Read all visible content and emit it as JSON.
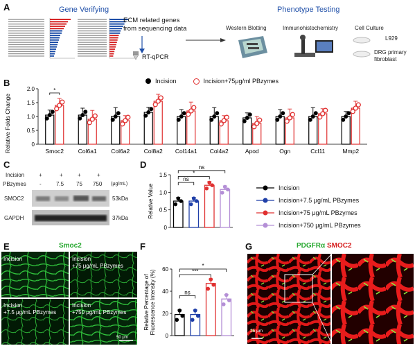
{
  "panels": {
    "A": "A",
    "B": "B",
    "C": "C",
    "D": "D",
    "E": "E",
    "F": "F",
    "G": "G"
  },
  "panelA": {
    "gene_verifying": "Gene Verifying",
    "phenotype_testing": "Phenotype Testing",
    "ecm_text_1": "ECM related genes",
    "ecm_text_2": "from sequencing data",
    "rtqpcr": "RT-qPCR",
    "western": "Western Blotting",
    "ihc": "Immunohistochemistry",
    "culture": "Cell Culture",
    "l929": "L929",
    "drg_1": "DRG primary",
    "drg_2": "fibroblast",
    "colors": {
      "blue": "#1f4fa8",
      "red": "#d62728"
    }
  },
  "chart_data": [
    {
      "id": "B",
      "type": "bar",
      "ylabel": "Relative Folds Change",
      "ylim": [
        0,
        2.0
      ],
      "yticks": [
        "0",
        "0.5",
        "1.0",
        "1.5",
        "2.0"
      ],
      "categories": [
        "Smoc2",
        "Col6a1",
        "Col6a2",
        "Col8a2",
        "Col14a1",
        "Col4a2",
        "Apod",
        "Ogn",
        "Ccl11",
        "Mmp2"
      ],
      "series": [
        {
          "name": "Incision",
          "color": "#000000",
          "values": [
            1.05,
            1.05,
            1.0,
            1.15,
            1.0,
            1.0,
            0.95,
            1.0,
            1.0,
            1.0
          ]
        },
        {
          "name": "Incision+75μg/ml PBzymes",
          "color": "#e03030",
          "values": [
            1.4,
            0.9,
            0.85,
            1.55,
            1.2,
            0.85,
            0.75,
            0.95,
            1.1,
            1.3
          ]
        }
      ],
      "significance": [
        "*"
      ]
    },
    {
      "id": "D",
      "type": "bar",
      "ylabel": "Relative Value",
      "ylim": [
        0,
        1.5
      ],
      "yticks": [
        "0",
        "0.5",
        "1.0",
        "1.5"
      ],
      "categories": [
        "Incision",
        "Incision+7.5 μg/mL PBzymes",
        "Incision+75 μg/mL PBzymes",
        "Incision+750 μg/mL PBzymes"
      ],
      "series": [
        {
          "name": "values",
          "values": [
            0.75,
            0.75,
            1.2,
            1.08
          ]
        }
      ],
      "colors": [
        "#000000",
        "#1f3fa8",
        "#e03030",
        "#b48fd6"
      ],
      "significance": [
        "ns",
        "*",
        "ns"
      ]
    },
    {
      "id": "F",
      "type": "bar",
      "ylabel": "Relative Percentage of Fluorescence Intensity (%)",
      "ylim": [
        0,
        60
      ],
      "yticks": [
        "0",
        "20",
        "40",
        "60"
      ],
      "categories": [
        "Incision",
        "Incision+7.5 μg/mL PBzymes",
        "Incision+75 μg/mL PBzymes",
        "Incision+750 μg/mL PBzymes"
      ],
      "series": [
        {
          "name": "values",
          "values": [
            19,
            19,
            47,
            33
          ]
        }
      ],
      "colors": [
        "#000000",
        "#1f3fa8",
        "#e03030",
        "#b48fd6"
      ],
      "significance": [
        "ns",
        "***",
        "*"
      ]
    }
  ],
  "panelB_legend": {
    "incision": "Incision",
    "pb": "Incision+75μg/ml PBzymes"
  },
  "panelC": {
    "incision": "Incision",
    "pbzymes": "PBzymes",
    "unit": "(μg/mL)",
    "plus": [
      "+",
      "+",
      "+",
      "+"
    ],
    "doses": [
      "-",
      "7.5",
      "75",
      "750"
    ],
    "smoc2": "SMOC2",
    "gapdh": "GAPDH",
    "kda53": "53kDa",
    "kda37": "37kDa"
  },
  "legendD": [
    {
      "label": "Incision",
      "color": "#000000"
    },
    {
      "label": "Incision+7.5 μg/mL PBzymes",
      "color": "#1f3fa8"
    },
    {
      "label": "Incision+75 μg/mL PBzymes",
      "color": "#e03030"
    },
    {
      "label": "Incision+750 μg/mL PBzymes",
      "color": "#b48fd6"
    }
  ],
  "panelE": {
    "title": "Smoc2",
    "q1": "Incision",
    "q2a": "Incision",
    "q2b": "+75 μg/mL PBzymes",
    "q3a": "Incision",
    "q3b": "+7.5 μg/mL PBzymes",
    "q4": "Incision",
    "q4b": "+750 μg/mL PBzymes",
    "scale": "50 μm"
  },
  "panelG": {
    "pdgfr": "PDGFRα",
    "smoc2": "SMOC2",
    "scale": "25 μm"
  }
}
